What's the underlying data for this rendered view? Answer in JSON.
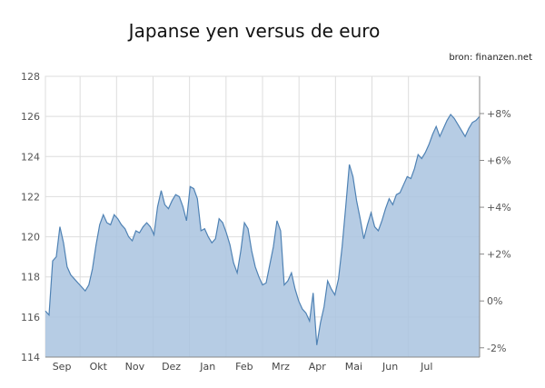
{
  "title": "Japanse yen versus de euro",
  "source": "bron: finanzen.net",
  "colors": {
    "fill": "#a9c3df",
    "line": "#4f82b4",
    "grid": "#dddddd",
    "axis": "#888888"
  },
  "chart_data": {
    "type": "area",
    "title": "Japanse yen versus de euro",
    "xlabel": "",
    "ylabel": "",
    "ylim": [
      114,
      128
    ],
    "yticks": [
      114,
      116,
      118,
      120,
      122,
      124,
      126,
      128
    ],
    "y2ticks": [
      "-2%",
      "0%",
      "+2%",
      "+4%",
      "+6%",
      "+8%"
    ],
    "y2_reference": 116.8,
    "y2ticks_values": [
      -2,
      0,
      2,
      4,
      6,
      8
    ],
    "months": [
      "Sep",
      "Okt",
      "Nov",
      "Dez",
      "Jan",
      "Feb",
      "Mrz",
      "Apr",
      "Mai",
      "Jun",
      "Jul"
    ],
    "grid": true,
    "x": [
      0,
      1,
      2,
      3,
      4,
      5,
      6,
      7,
      8,
      9,
      10,
      11,
      12,
      13,
      14,
      15,
      16,
      17,
      18,
      19,
      20,
      21,
      22,
      23,
      24,
      25,
      26,
      27,
      28,
      29,
      30,
      31,
      32,
      33,
      34,
      35,
      36,
      37,
      38,
      39,
      40,
      41,
      42,
      43,
      44,
      45,
      46,
      47,
      48,
      49,
      50,
      51,
      52,
      53,
      54,
      55,
      56,
      57,
      58,
      59,
      60,
      61,
      62,
      63,
      64,
      65,
      66,
      67,
      68,
      69,
      70,
      71,
      72,
      73,
      74,
      75,
      76,
      77,
      78,
      79,
      80,
      81,
      82,
      83,
      84,
      85,
      86,
      87,
      88,
      89,
      90,
      91,
      92,
      93,
      94,
      95,
      96,
      97,
      98,
      99,
      100,
      101,
      102,
      103,
      104,
      105,
      106,
      107,
      108,
      109,
      110,
      111,
      112,
      113,
      114,
      115,
      116,
      117,
      118,
      119,
      120
    ],
    "values": [
      116.3,
      116.1,
      118.8,
      119.0,
      120.5,
      119.7,
      118.5,
      118.1,
      117.9,
      117.7,
      117.5,
      117.3,
      117.6,
      118.4,
      119.6,
      120.6,
      121.1,
      120.7,
      120.6,
      121.1,
      120.9,
      120.6,
      120.4,
      120.0,
      119.8,
      120.3,
      120.2,
      120.5,
      120.7,
      120.5,
      120.1,
      121.5,
      122.3,
      121.6,
      121.4,
      121.8,
      122.1,
      122.0,
      121.5,
      120.8,
      122.5,
      122.4,
      121.9,
      120.3,
      120.4,
      120.0,
      119.7,
      119.9,
      120.9,
      120.7,
      120.2,
      119.6,
      118.7,
      118.2,
      119.3,
      120.7,
      120.4,
      119.3,
      118.5,
      118.0,
      117.6,
      117.7,
      118.6,
      119.5,
      120.8,
      120.3,
      117.6,
      117.8,
      118.2,
      117.4,
      116.8,
      116.4,
      116.2,
      115.8,
      117.2,
      114.6,
      115.7,
      116.5,
      117.8,
      117.4,
      117.1,
      117.9,
      119.5,
      121.5,
      123.6,
      123.0,
      121.8,
      120.9,
      119.9,
      120.6,
      121.2,
      120.5,
      120.3,
      120.8,
      121.4,
      121.9,
      121.6,
      122.1,
      122.2,
      122.6,
      123.0,
      122.9,
      123.4,
      124.1,
      123.9,
      124.2,
      124.6,
      125.1,
      125.5,
      125.0,
      125.4,
      125.8,
      126.1,
      125.9,
      125.6,
      125.3,
      125.0,
      125.4,
      125.7,
      125.8,
      126.0
    ]
  }
}
